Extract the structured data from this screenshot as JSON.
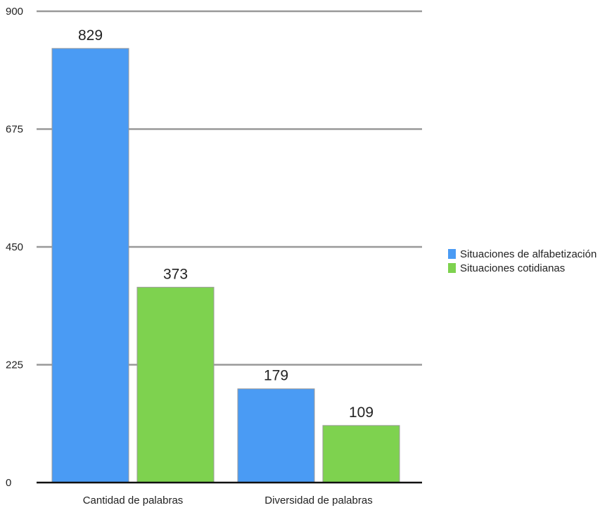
{
  "chart_data": {
    "type": "bar",
    "categories": [
      "Cantidad de palabras",
      "Diversidad de palabras"
    ],
    "series": [
      {
        "name": "Situaciones de alfabetización",
        "values": [
          829,
          179
        ],
        "color": "#4A9BF4"
      },
      {
        "name": "Situaciones cotidianas",
        "values": [
          373,
          109
        ],
        "color": "#7ED24F"
      }
    ],
    "ylim": [
      0,
      900
    ],
    "yticks": [
      0,
      225,
      450,
      675,
      900
    ],
    "grid": true,
    "legend_position": "right",
    "data_labels": true
  }
}
